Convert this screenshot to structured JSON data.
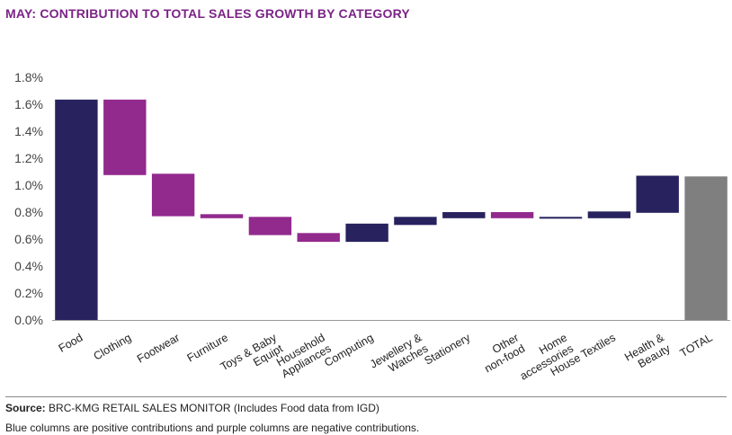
{
  "chart_data": {
    "type": "bar",
    "subtype": "waterfall",
    "title": "MAY: CONTRIBUTION TO TOTAL SALES GROWTH BY CATEGORY",
    "ylim": [
      0,
      1.8
    ],
    "yticks": [
      "0.0%",
      "0.2%",
      "0.4%",
      "0.6%",
      "0.8%",
      "1.0%",
      "1.2%",
      "1.4%",
      "1.6%",
      "1.8%"
    ],
    "grid": false,
    "legend": "none",
    "categories": [
      [
        "Food"
      ],
      [
        "Clothing"
      ],
      [
        "Footwear"
      ],
      [
        "Furniture"
      ],
      [
        "Toys & Baby",
        "Equipt"
      ],
      [
        "Household",
        "Appliances"
      ],
      [
        "Computing"
      ],
      [
        "Jewellery &",
        "Watches"
      ],
      [
        "Stationery"
      ],
      [
        "Other",
        "non-food"
      ],
      [
        "Home",
        "accessories"
      ],
      [
        "House Textiles"
      ],
      [
        "Health &",
        "Beauty"
      ],
      [
        "TOTAL"
      ]
    ],
    "bars": [
      {
        "start": 0.0,
        "end": 1.635,
        "kind": "positive"
      },
      {
        "start": 1.635,
        "end": 1.075,
        "kind": "negative"
      },
      {
        "start": 1.085,
        "end": 0.77,
        "kind": "negative"
      },
      {
        "start": 0.785,
        "end": 0.755,
        "kind": "negative"
      },
      {
        "start": 0.765,
        "end": 0.63,
        "kind": "negative"
      },
      {
        "start": 0.645,
        "end": 0.58,
        "kind": "negative"
      },
      {
        "start": 0.58,
        "end": 0.715,
        "kind": "positive"
      },
      {
        "start": 0.705,
        "end": 0.765,
        "kind": "positive"
      },
      {
        "start": 0.755,
        "end": 0.8,
        "kind": "positive"
      },
      {
        "start": 0.8,
        "end": 0.755,
        "kind": "negative"
      },
      {
        "start": 0.765,
        "end": 0.76,
        "kind": "positive"
      },
      {
        "start": 0.755,
        "end": 0.805,
        "kind": "positive"
      },
      {
        "start": 0.795,
        "end": 1.07,
        "kind": "positive"
      },
      {
        "start": 0.0,
        "end": 1.065,
        "kind": "total"
      }
    ],
    "colors": {
      "positive": "#28225e",
      "negative": "#922a8e",
      "total": "#7f7f7f",
      "title": "#7b2386",
      "axis": "#999999"
    }
  },
  "footer": {
    "source_label": "Source:",
    "source_text": " BRC-KMG RETAIL SALES MONITOR (Includes Food data from IGD)",
    "note": "Blue columns are positive contributions and purple columns are negative contributions."
  }
}
